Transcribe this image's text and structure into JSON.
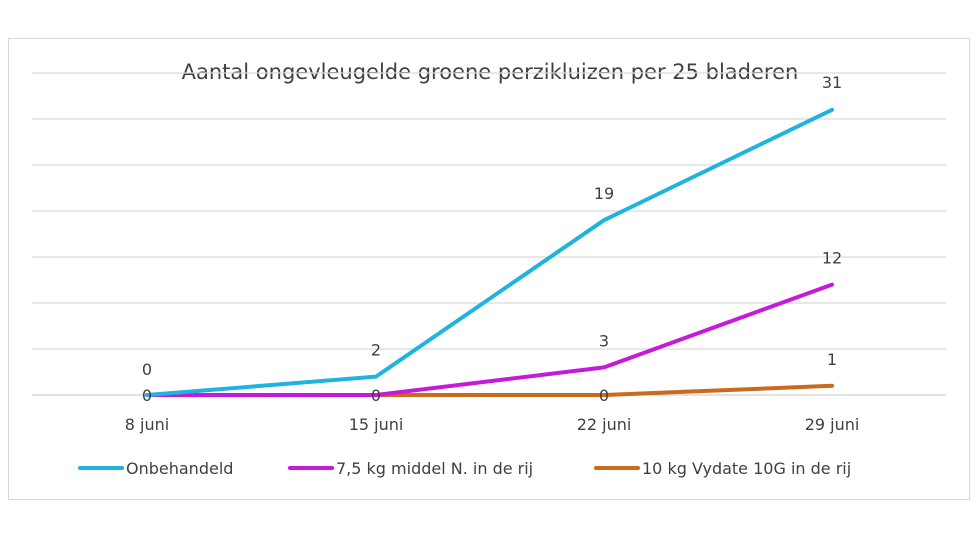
{
  "chart_data": {
    "type": "line",
    "title": "Aantal ongevleugelde groene perzikluizen per 25 bladeren",
    "categories": [
      "8 juni",
      "15 juni",
      "22 juni",
      "29 juni"
    ],
    "ylim": [
      0,
      35
    ],
    "grid": true,
    "legend_position": "bottom",
    "series": [
      {
        "name": "Onbehandeld",
        "values": [
          0,
          2,
          19,
          31
        ],
        "color": "#1fb3e0"
      },
      {
        "name": "7,5 kg middel N. in de rij",
        "values": [
          0,
          0,
          3,
          12
        ],
        "color": "#c61adb"
      },
      {
        "name": "10 kg Vydate 10G in de rij",
        "values": [
          0,
          0,
          0,
          1
        ],
        "color": "#c96a1c"
      }
    ],
    "data_labels": [
      {
        "series": 0,
        "index": 0,
        "text": "0"
      },
      {
        "series": 0,
        "index": 1,
        "text": "2"
      },
      {
        "series": 0,
        "index": 2,
        "text": "19"
      },
      {
        "series": 0,
        "index": 3,
        "text": "31"
      },
      {
        "series": 1,
        "index": 2,
        "text": "3"
      },
      {
        "series": 1,
        "index": 3,
        "text": "12"
      },
      {
        "series": 2,
        "index": 0,
        "text": "0"
      },
      {
        "series": 2,
        "index": 1,
        "text": "0"
      },
      {
        "series": 2,
        "index": 2,
        "text": "0"
      },
      {
        "series": 2,
        "index": 3,
        "text": "1"
      }
    ]
  }
}
